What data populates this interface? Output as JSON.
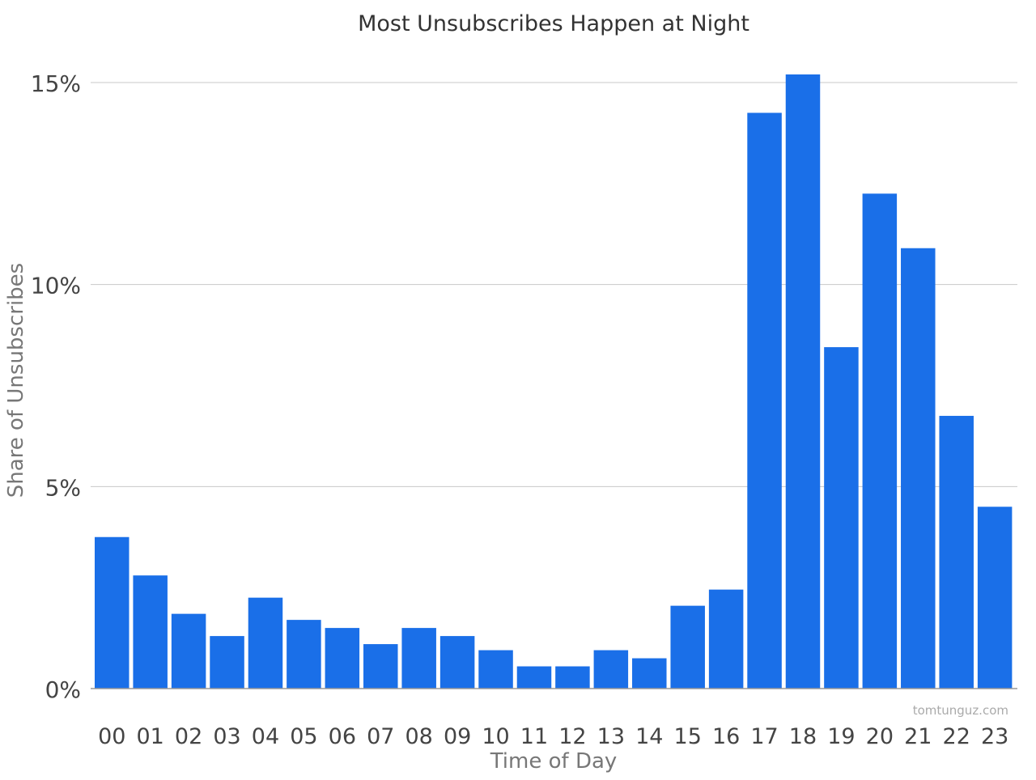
{
  "chart_data": {
    "type": "bar",
    "title": "Most Unsubscribes Happen at Night",
    "xlabel": "Time of Day",
    "ylabel": "Share of Unsubscribes",
    "categories": [
      "00",
      "01",
      "02",
      "03",
      "04",
      "05",
      "06",
      "07",
      "08",
      "09",
      "10",
      "11",
      "12",
      "13",
      "14",
      "15",
      "16",
      "17",
      "18",
      "19",
      "20",
      "21",
      "22",
      "23"
    ],
    "values": [
      3.75,
      2.8,
      1.85,
      1.3,
      2.25,
      1.7,
      1.5,
      1.1,
      1.5,
      1.3,
      0.95,
      0.55,
      0.55,
      0.95,
      0.75,
      2.05,
      2.45,
      14.25,
      15.2,
      8.45,
      12.25,
      10.9,
      6.75,
      4.5
    ],
    "ylim": [
      0,
      15.5
    ],
    "yticks": [
      {
        "value": 0,
        "label": "0%"
      },
      {
        "value": 5,
        "label": "5%"
      },
      {
        "value": 10,
        "label": "10%"
      },
      {
        "value": 15,
        "label": "15%"
      }
    ],
    "grid": true,
    "bar_color": "#1a6fe8",
    "grid_color": "#c8c8c8",
    "watermark": "tomtunguz.com"
  }
}
